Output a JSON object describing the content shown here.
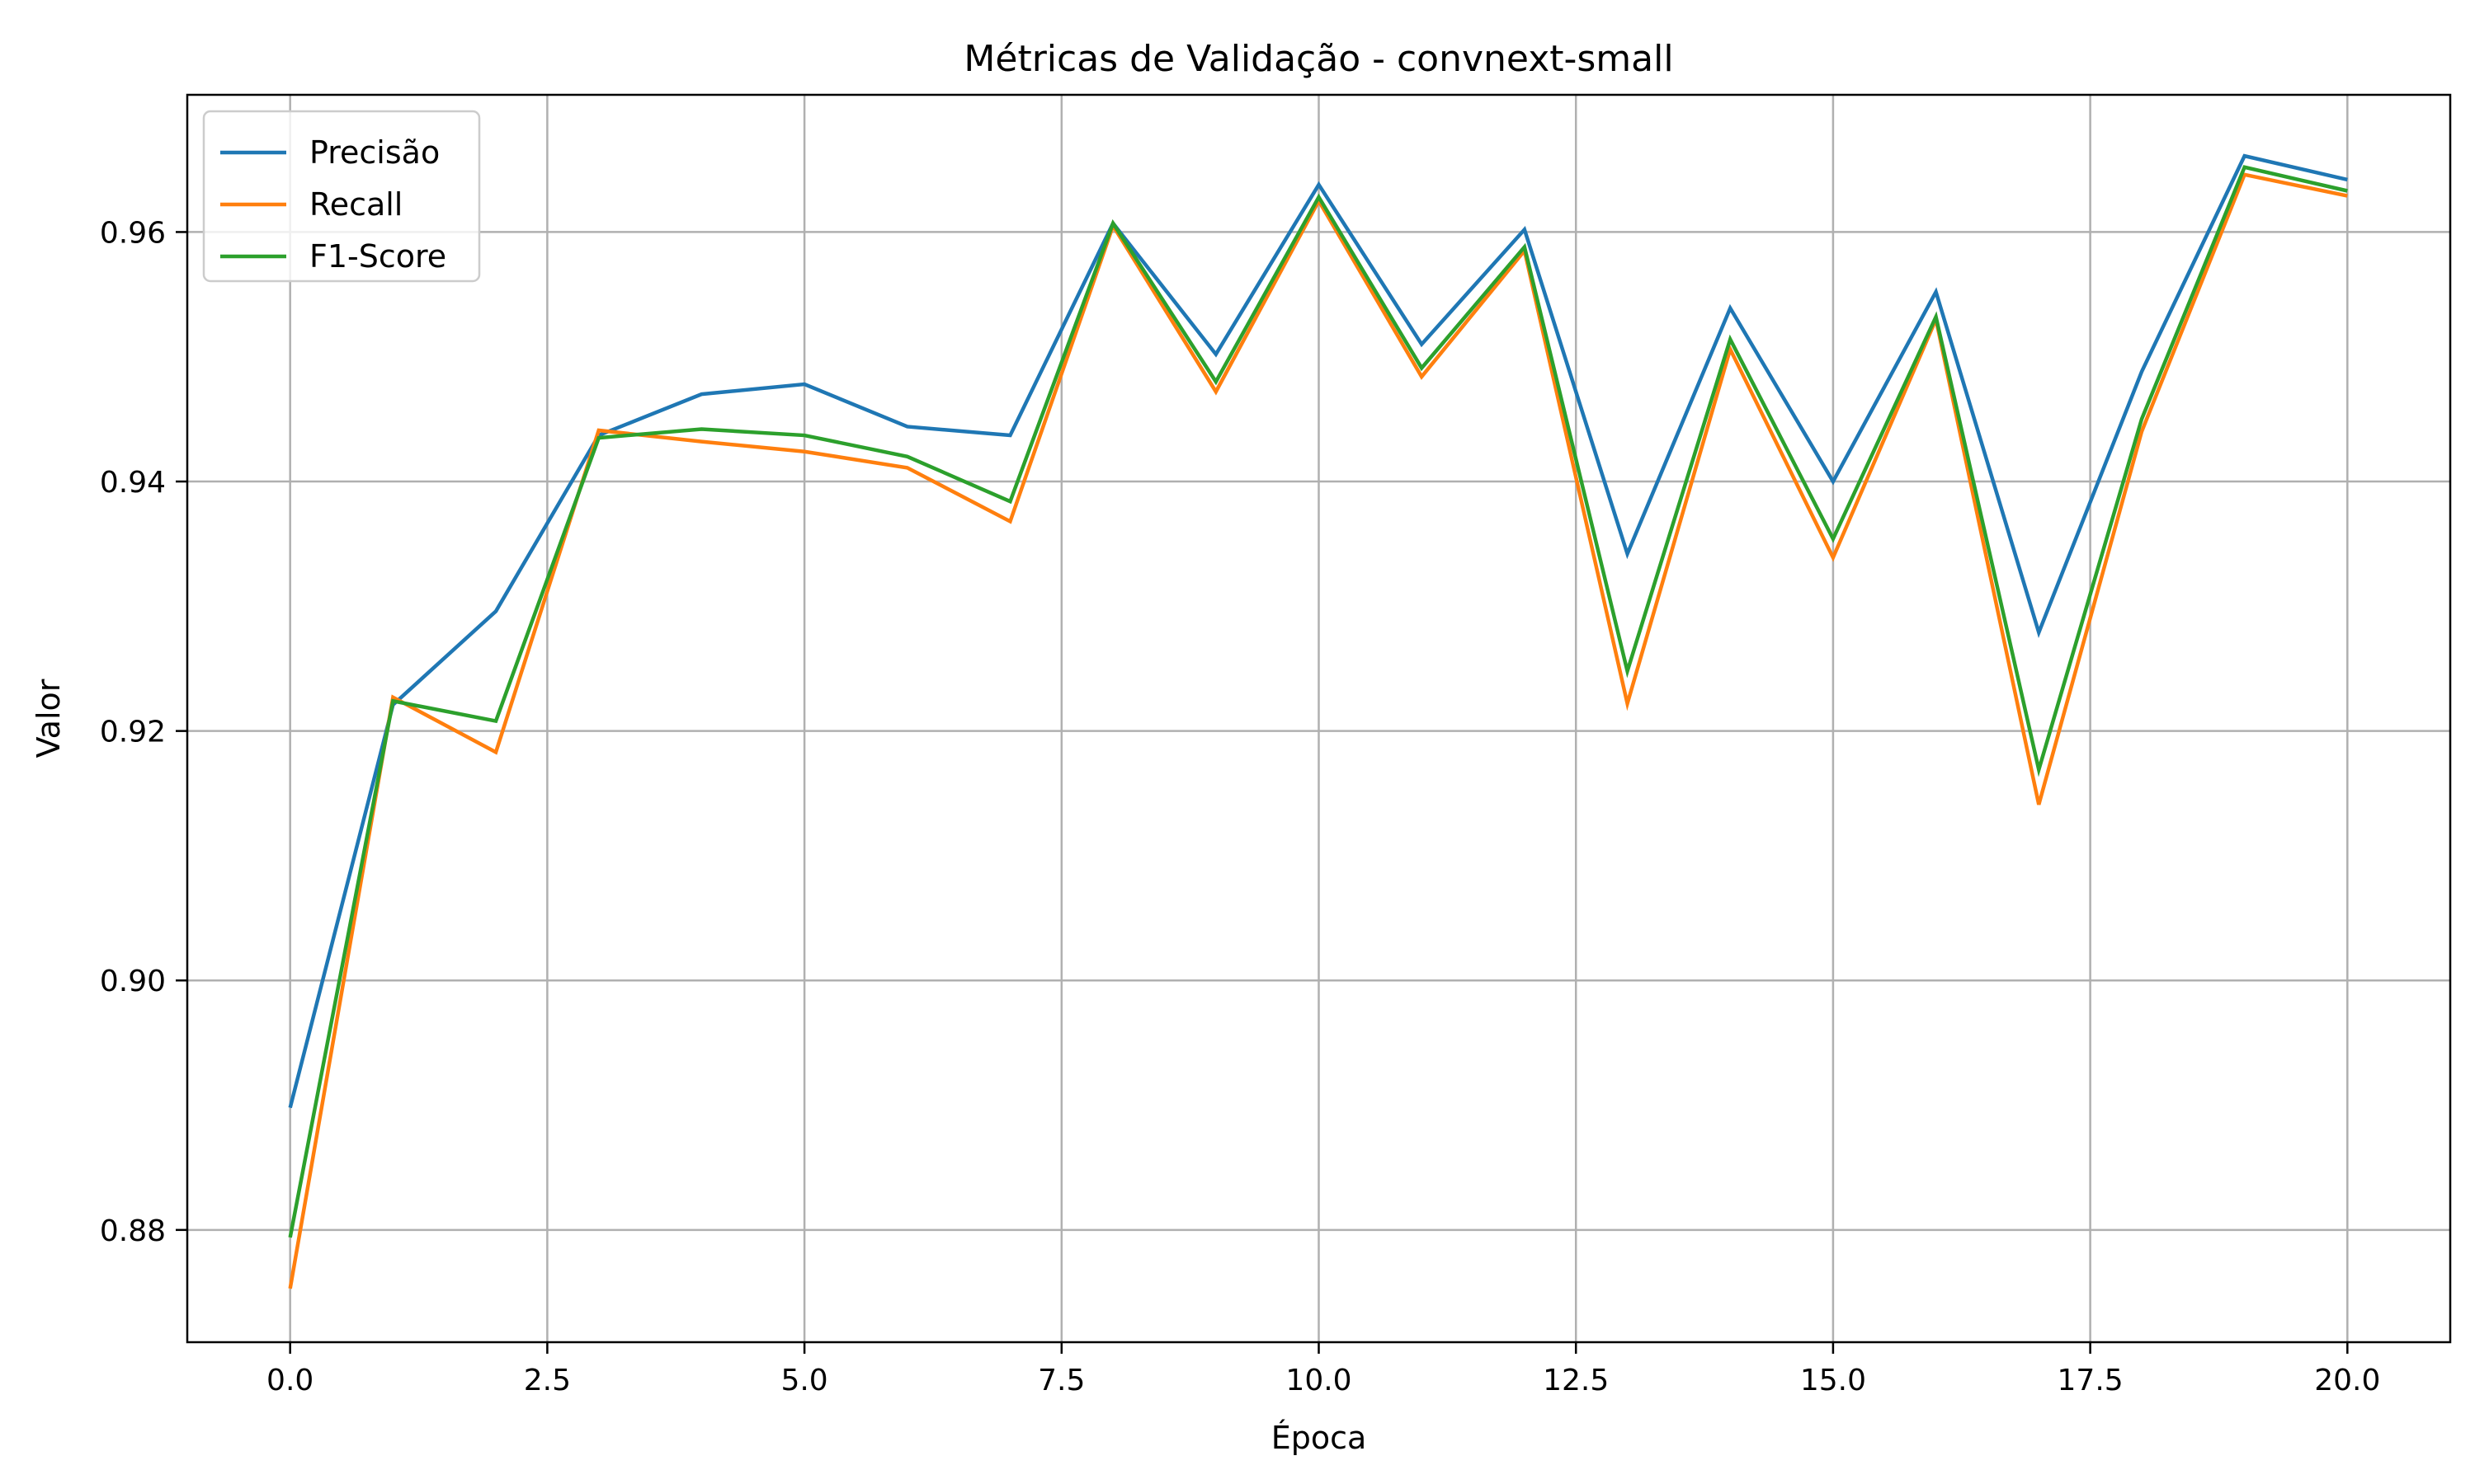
{
  "chart_data": {
    "type": "line",
    "title": "Métricas de Validação - convnext-small",
    "xlabel": "Época",
    "ylabel": "Valor",
    "xlim": [
      -1,
      21
    ],
    "ylim": [
      0.871,
      0.971
    ],
    "xticks": [
      0.0,
      2.5,
      5.0,
      7.5,
      10.0,
      12.5,
      15.0,
      17.5,
      20.0
    ],
    "xtick_labels": [
      "0.0",
      "2.5",
      "5.0",
      "7.5",
      "10.0",
      "12.5",
      "15.0",
      "17.5",
      "20.0"
    ],
    "yticks": [
      0.88,
      0.9,
      0.92,
      0.94,
      0.96
    ],
    "ytick_labels": [
      "0.88",
      "0.90",
      "0.92",
      "0.94",
      "0.96"
    ],
    "grid": true,
    "legend_position": "top-left",
    "x": [
      0,
      1,
      2,
      3,
      4,
      5,
      6,
      7,
      8,
      9,
      10,
      11,
      12,
      13,
      14,
      15,
      16,
      17,
      18,
      19,
      20
    ],
    "series": [
      {
        "name": "Precisão",
        "color": "#1f77b4",
        "values": [
          0.8898,
          0.9221,
          0.9296,
          0.9437,
          0.947,
          0.9478,
          0.9444,
          0.9437,
          0.9607,
          0.9502,
          0.9638,
          0.951,
          0.9602,
          0.9342,
          0.9539,
          0.94,
          0.9552,
          0.9279,
          0.9488,
          0.9661,
          0.9642
        ]
      },
      {
        "name": "Recall",
        "color": "#ff7f0e",
        "values": [
          0.8753,
          0.9227,
          0.9183,
          0.9441,
          0.9432,
          0.9424,
          0.9411,
          0.9368,
          0.9605,
          0.9472,
          0.9625,
          0.9484,
          0.9585,
          0.9222,
          0.9506,
          0.9339,
          0.953,
          0.9141,
          0.944,
          0.9646,
          0.9629
        ]
      },
      {
        "name": "F1-Score",
        "color": "#2ca02c",
        "values": [
          0.8794,
          0.9224,
          0.9208,
          0.9435,
          0.9442,
          0.9437,
          0.942,
          0.9384,
          0.9607,
          0.948,
          0.9628,
          0.9491,
          0.9588,
          0.9248,
          0.9514,
          0.9354,
          0.9532,
          0.9169,
          0.945,
          0.9652,
          0.9633
        ]
      }
    ]
  }
}
